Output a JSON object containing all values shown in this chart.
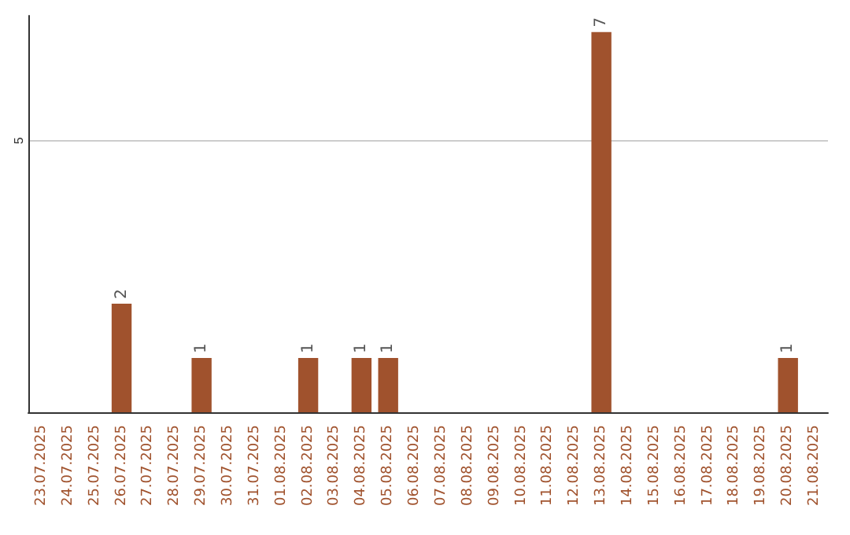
{
  "chart_data": {
    "type": "bar",
    "categories": [
      "23.07.2025",
      "24.07.2025",
      "25.07.2025",
      "26.07.2025",
      "27.07.2025",
      "28.07.2025",
      "29.07.2025",
      "30.07.2025",
      "31.07.2025",
      "01.08.2025",
      "02.08.2025",
      "03.08.2025",
      "04.08.2025",
      "05.08.2025",
      "06.08.2025",
      "07.08.2025",
      "08.08.2025",
      "09.08.2025",
      "10.08.2025",
      "11.08.2025",
      "12.08.2025",
      "13.08.2025",
      "14.08.2025",
      "15.08.2025",
      "16.08.2025",
      "17.08.2025",
      "18.08.2025",
      "19.08.2025",
      "20.08.2025",
      "21.08.2025"
    ],
    "series": [
      {
        "color": "#a0522d",
        "values": [
          0,
          0,
          0,
          2,
          0,
          0,
          1,
          0,
          0,
          0,
          1,
          0,
          1,
          1,
          0,
          0,
          0,
          0,
          0,
          0,
          0,
          7,
          0,
          0,
          0,
          0,
          0,
          0,
          1,
          0
        ],
        "value_labels": [
          null,
          null,
          null,
          "2",
          null,
          null,
          "1",
          null,
          null,
          null,
          "1",
          null,
          "1",
          "1",
          null,
          null,
          null,
          null,
          null,
          null,
          null,
          "7",
          null,
          null,
          null,
          null,
          null,
          null,
          "1",
          null
        ]
      }
    ],
    "ylim": [
      0,
      7.3
    ],
    "yticks": [
      5
    ],
    "grid": "y"
  }
}
